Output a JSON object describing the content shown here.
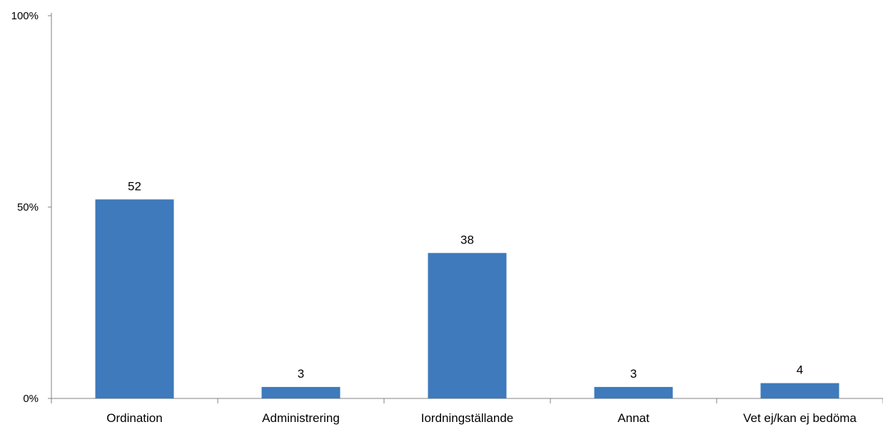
{
  "chart_data": {
    "type": "bar",
    "categories": [
      "Ordination",
      "Administrering",
      "Iordningställande",
      "Annat",
      "Vet ej/kan ej bedöma"
    ],
    "values": [
      52,
      3,
      38,
      3,
      4
    ],
    "value_labels": [
      "52",
      "3",
      "38",
      "3",
      "4"
    ],
    "ylim": [
      0,
      100
    ],
    "yticks": [
      0,
      50,
      100
    ],
    "ytick_labels": [
      "0%",
      "50%",
      "100%"
    ],
    "grid": false,
    "legend": "none",
    "bar_color": "#3e7abc"
  }
}
